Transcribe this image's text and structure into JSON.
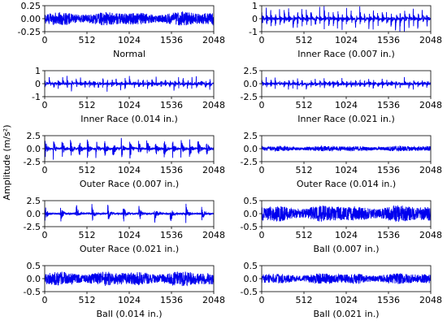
{
  "figure": {
    "ylabel": "Amplitude (m/s²)"
  },
  "style": {
    "series_color": "#0000ee",
    "axis_color": "#000000"
  },
  "chart_data": [
    {
      "type": "line",
      "title": "Normal",
      "xlim": [
        0,
        2048
      ],
      "ylim": [
        -0.25,
        0.25
      ],
      "xticks": [
        "0",
        "512",
        "1024",
        "1536",
        "2048"
      ],
      "yticks": [
        "0.25",
        "0.00",
        "-0.25"
      ],
      "grid": false,
      "signal": {
        "pattern": "noise",
        "amplitude": 0.14,
        "impulse_period": 0
      }
    },
    {
      "type": "line",
      "title": "Inner Race (0.007 in.)",
      "xlim": [
        0,
        2048
      ],
      "ylim": [
        -1,
        1
      ],
      "xticks": [
        "0",
        "512",
        "1024",
        "1536",
        "2048"
      ],
      "yticks": [
        "1",
        "0",
        "-1"
      ],
      "grid": false,
      "signal": {
        "pattern": "impulses",
        "amplitude": 1.0,
        "impulse_period": 54
      }
    },
    {
      "type": "line",
      "title": "Inner Race (0.014 in.)",
      "xlim": [
        0,
        2048
      ],
      "ylim": [
        -1,
        1
      ],
      "xticks": [
        "0",
        "512",
        "1024",
        "1536",
        "2048"
      ],
      "yticks": [
        "1",
        "0",
        "-1"
      ],
      "grid": false,
      "signal": {
        "pattern": "impulses",
        "amplitude": 0.55,
        "impulse_period": 54
      }
    },
    {
      "type": "line",
      "title": "Inner Race (0.021 in.)",
      "xlim": [
        0,
        2048
      ],
      "ylim": [
        -2.5,
        2.5
      ],
      "xticks": [
        "0",
        "512",
        "1024",
        "1536",
        "2048"
      ],
      "yticks": [
        "2.5",
        "0.0",
        "-2.5"
      ],
      "grid": false,
      "signal": {
        "pattern": "impulses",
        "amplitude": 1.1,
        "impulse_period": 54
      }
    },
    {
      "type": "line",
      "title": "Outer Race (0.007 in.)",
      "xlim": [
        0,
        2048
      ],
      "ylim": [
        -2.5,
        2.5
      ],
      "xticks": [
        "0",
        "512",
        "1024",
        "1536",
        "2048"
      ],
      "yticks": [
        "2.5",
        "0.0",
        "-2.5"
      ],
      "grid": false,
      "signal": {
        "pattern": "bursts",
        "amplitude": 2.2,
        "impulse_period": 103
      }
    },
    {
      "type": "line",
      "title": "Outer Race (0.014 in.)",
      "xlim": [
        0,
        2048
      ],
      "ylim": [
        -2.5,
        2.5
      ],
      "xticks": [
        "0",
        "512",
        "1024",
        "1536",
        "2048"
      ],
      "yticks": [
        "2.5",
        "0.0",
        "-2.5"
      ],
      "grid": false,
      "signal": {
        "pattern": "noise",
        "amplitude": 0.55,
        "impulse_period": 0
      }
    },
    {
      "type": "line",
      "title": "Outer Race (0.021 in.)",
      "xlim": [
        0,
        2048
      ],
      "ylim": [
        -2.5,
        2.5
      ],
      "xticks": [
        "0",
        "512",
        "1024",
        "1536",
        "2048"
      ],
      "yticks": [
        "2.5",
        "0.0",
        "-2.5"
      ],
      "grid": false,
      "signal": {
        "pattern": "bursts",
        "amplitude": 2.0,
        "impulse_period": 190
      }
    },
    {
      "type": "line",
      "title": "Ball (0.007 in.)",
      "xlim": [
        0,
        2048
      ],
      "ylim": [
        -0.5,
        0.5
      ],
      "xticks": [
        "0",
        "512",
        "1024",
        "1536",
        "2048"
      ],
      "yticks": [
        "0.5",
        "0.0",
        "-0.5"
      ],
      "grid": false,
      "signal": {
        "pattern": "noise",
        "amplitude": 0.34,
        "impulse_period": 0
      }
    },
    {
      "type": "line",
      "title": "Ball (0.014 in.)",
      "xlim": [
        0,
        2048
      ],
      "ylim": [
        -0.5,
        0.5
      ],
      "xticks": [
        "0",
        "512",
        "1024",
        "1536",
        "2048"
      ],
      "yticks": [
        "0.5",
        "0.0",
        "-0.5"
      ],
      "grid": false,
      "signal": {
        "pattern": "noise",
        "amplitude": 0.3,
        "impulse_period": 0
      }
    },
    {
      "type": "line",
      "title": "Ball (0.021 in.)",
      "xlim": [
        0,
        2048
      ],
      "ylim": [
        -0.5,
        0.5
      ],
      "xticks": [
        "0",
        "512",
        "1024",
        "1536",
        "2048"
      ],
      "yticks": [
        "0.5",
        "0.0",
        "-0.5"
      ],
      "grid": false,
      "signal": {
        "pattern": "noise",
        "amplitude": 0.22,
        "impulse_period": 0
      }
    }
  ]
}
